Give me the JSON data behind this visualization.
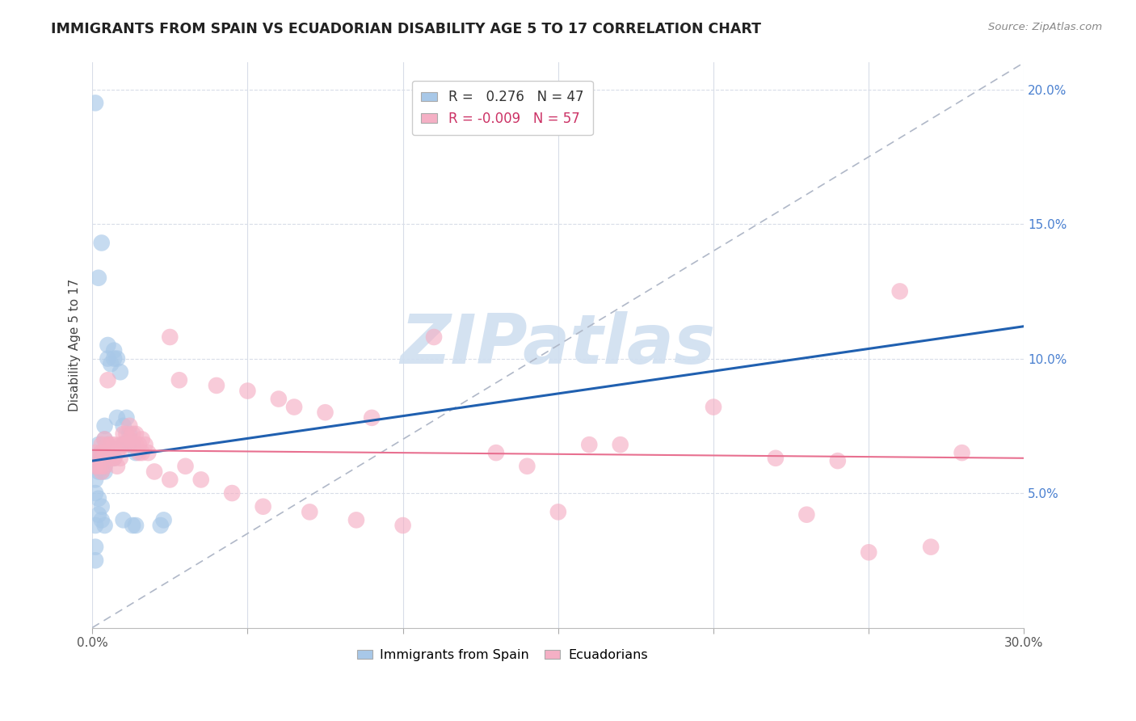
{
  "title": "IMMIGRANTS FROM SPAIN VS ECUADORIAN DISABILITY AGE 5 TO 17 CORRELATION CHART",
  "source": "Source: ZipAtlas.com",
  "ylabel_label": "Disability Age 5 to 17",
  "x_min": 0.0,
  "x_max": 0.3,
  "y_min": 0.0,
  "y_max": 0.21,
  "x_ticks": [
    0.0,
    0.05,
    0.1,
    0.15,
    0.2,
    0.25,
    0.3
  ],
  "y_ticks": [
    0.05,
    0.1,
    0.15,
    0.2
  ],
  "y_tick_labels": [
    "5.0%",
    "10.0%",
    "15.0%",
    "20.0%"
  ],
  "blue_color": "#a8c8e8",
  "pink_color": "#f5b0c5",
  "blue_line_color": "#2060b0",
  "pink_line_color": "#e87090",
  "diagonal_color": "#b0b8c8",
  "watermark_text": "ZIPatlas",
  "watermark_color": "#d0dff0",
  "background_color": "#ffffff",
  "grid_color": "#d8dde8",
  "title_color": "#222222",
  "source_color": "#888888",
  "ytick_color": "#4a80d0",
  "xtick_color": "#555555",
  "blue_line_x": [
    0.0,
    0.3
  ],
  "blue_line_y": [
    0.062,
    0.112
  ],
  "pink_line_x": [
    0.0,
    0.3
  ],
  "pink_line_y": [
    0.066,
    0.063
  ],
  "blue_scatter": [
    [
      0.001,
      0.195
    ],
    [
      0.002,
      0.13
    ],
    [
      0.003,
      0.143
    ],
    [
      0.005,
      0.1
    ],
    [
      0.005,
      0.105
    ],
    [
      0.006,
      0.098
    ],
    [
      0.007,
      0.1
    ],
    [
      0.007,
      0.103
    ],
    [
      0.008,
      0.078
    ],
    [
      0.008,
      0.1
    ],
    [
      0.009,
      0.095
    ],
    [
      0.01,
      0.068
    ],
    [
      0.01,
      0.075
    ],
    [
      0.011,
      0.078
    ],
    [
      0.012,
      0.072
    ],
    [
      0.013,
      0.068
    ],
    [
      0.014,
      0.065
    ],
    [
      0.002,
      0.068
    ],
    [
      0.003,
      0.063
    ],
    [
      0.004,
      0.075
    ],
    [
      0.004,
      0.07
    ],
    [
      0.005,
      0.068
    ],
    [
      0.006,
      0.065
    ],
    [
      0.007,
      0.063
    ],
    [
      0.001,
      0.063
    ],
    [
      0.001,
      0.06
    ],
    [
      0.002,
      0.058
    ],
    [
      0.002,
      0.062
    ],
    [
      0.003,
      0.058
    ],
    [
      0.003,
      0.065
    ],
    [
      0.004,
      0.06
    ],
    [
      0.004,
      0.058
    ],
    [
      0.001,
      0.055
    ],
    [
      0.001,
      0.05
    ],
    [
      0.002,
      0.048
    ],
    [
      0.002,
      0.042
    ],
    [
      0.003,
      0.045
    ],
    [
      0.003,
      0.04
    ],
    [
      0.004,
      0.038
    ],
    [
      0.001,
      0.038
    ],
    [
      0.001,
      0.03
    ],
    [
      0.001,
      0.025
    ],
    [
      0.01,
      0.04
    ],
    [
      0.013,
      0.038
    ],
    [
      0.014,
      0.038
    ],
    [
      0.022,
      0.038
    ],
    [
      0.023,
      0.04
    ]
  ],
  "pink_scatter": [
    [
      0.001,
      0.065
    ],
    [
      0.001,
      0.06
    ],
    [
      0.002,
      0.063
    ],
    [
      0.002,
      0.06
    ],
    [
      0.003,
      0.068
    ],
    [
      0.003,
      0.065
    ],
    [
      0.003,
      0.06
    ],
    [
      0.003,
      0.058
    ],
    [
      0.004,
      0.07
    ],
    [
      0.004,
      0.065
    ],
    [
      0.004,
      0.06
    ],
    [
      0.005,
      0.092
    ],
    [
      0.005,
      0.068
    ],
    [
      0.005,
      0.065
    ],
    [
      0.006,
      0.068
    ],
    [
      0.006,
      0.063
    ],
    [
      0.007,
      0.068
    ],
    [
      0.007,
      0.063
    ],
    [
      0.008,
      0.065
    ],
    [
      0.008,
      0.06
    ],
    [
      0.009,
      0.068
    ],
    [
      0.009,
      0.063
    ],
    [
      0.01,
      0.072
    ],
    [
      0.01,
      0.068
    ],
    [
      0.011,
      0.072
    ],
    [
      0.011,
      0.068
    ],
    [
      0.012,
      0.075
    ],
    [
      0.012,
      0.07
    ],
    [
      0.013,
      0.072
    ],
    [
      0.013,
      0.068
    ],
    [
      0.014,
      0.072
    ],
    [
      0.014,
      0.068
    ],
    [
      0.015,
      0.068
    ],
    [
      0.015,
      0.065
    ],
    [
      0.016,
      0.07
    ],
    [
      0.016,
      0.065
    ],
    [
      0.017,
      0.068
    ],
    [
      0.018,
      0.065
    ],
    [
      0.025,
      0.108
    ],
    [
      0.028,
      0.092
    ],
    [
      0.04,
      0.09
    ],
    [
      0.05,
      0.088
    ],
    [
      0.06,
      0.085
    ],
    [
      0.065,
      0.082
    ],
    [
      0.075,
      0.08
    ],
    [
      0.09,
      0.078
    ],
    [
      0.11,
      0.108
    ],
    [
      0.13,
      0.065
    ],
    [
      0.14,
      0.06
    ],
    [
      0.16,
      0.068
    ],
    [
      0.17,
      0.068
    ],
    [
      0.2,
      0.082
    ],
    [
      0.22,
      0.063
    ],
    [
      0.24,
      0.062
    ],
    [
      0.26,
      0.125
    ],
    [
      0.28,
      0.065
    ],
    [
      0.02,
      0.058
    ],
    [
      0.025,
      0.055
    ],
    [
      0.03,
      0.06
    ],
    [
      0.035,
      0.055
    ],
    [
      0.045,
      0.05
    ],
    [
      0.055,
      0.045
    ],
    [
      0.07,
      0.043
    ],
    [
      0.085,
      0.04
    ],
    [
      0.1,
      0.038
    ],
    [
      0.15,
      0.043
    ],
    [
      0.23,
      0.042
    ],
    [
      0.25,
      0.028
    ],
    [
      0.27,
      0.03
    ]
  ]
}
